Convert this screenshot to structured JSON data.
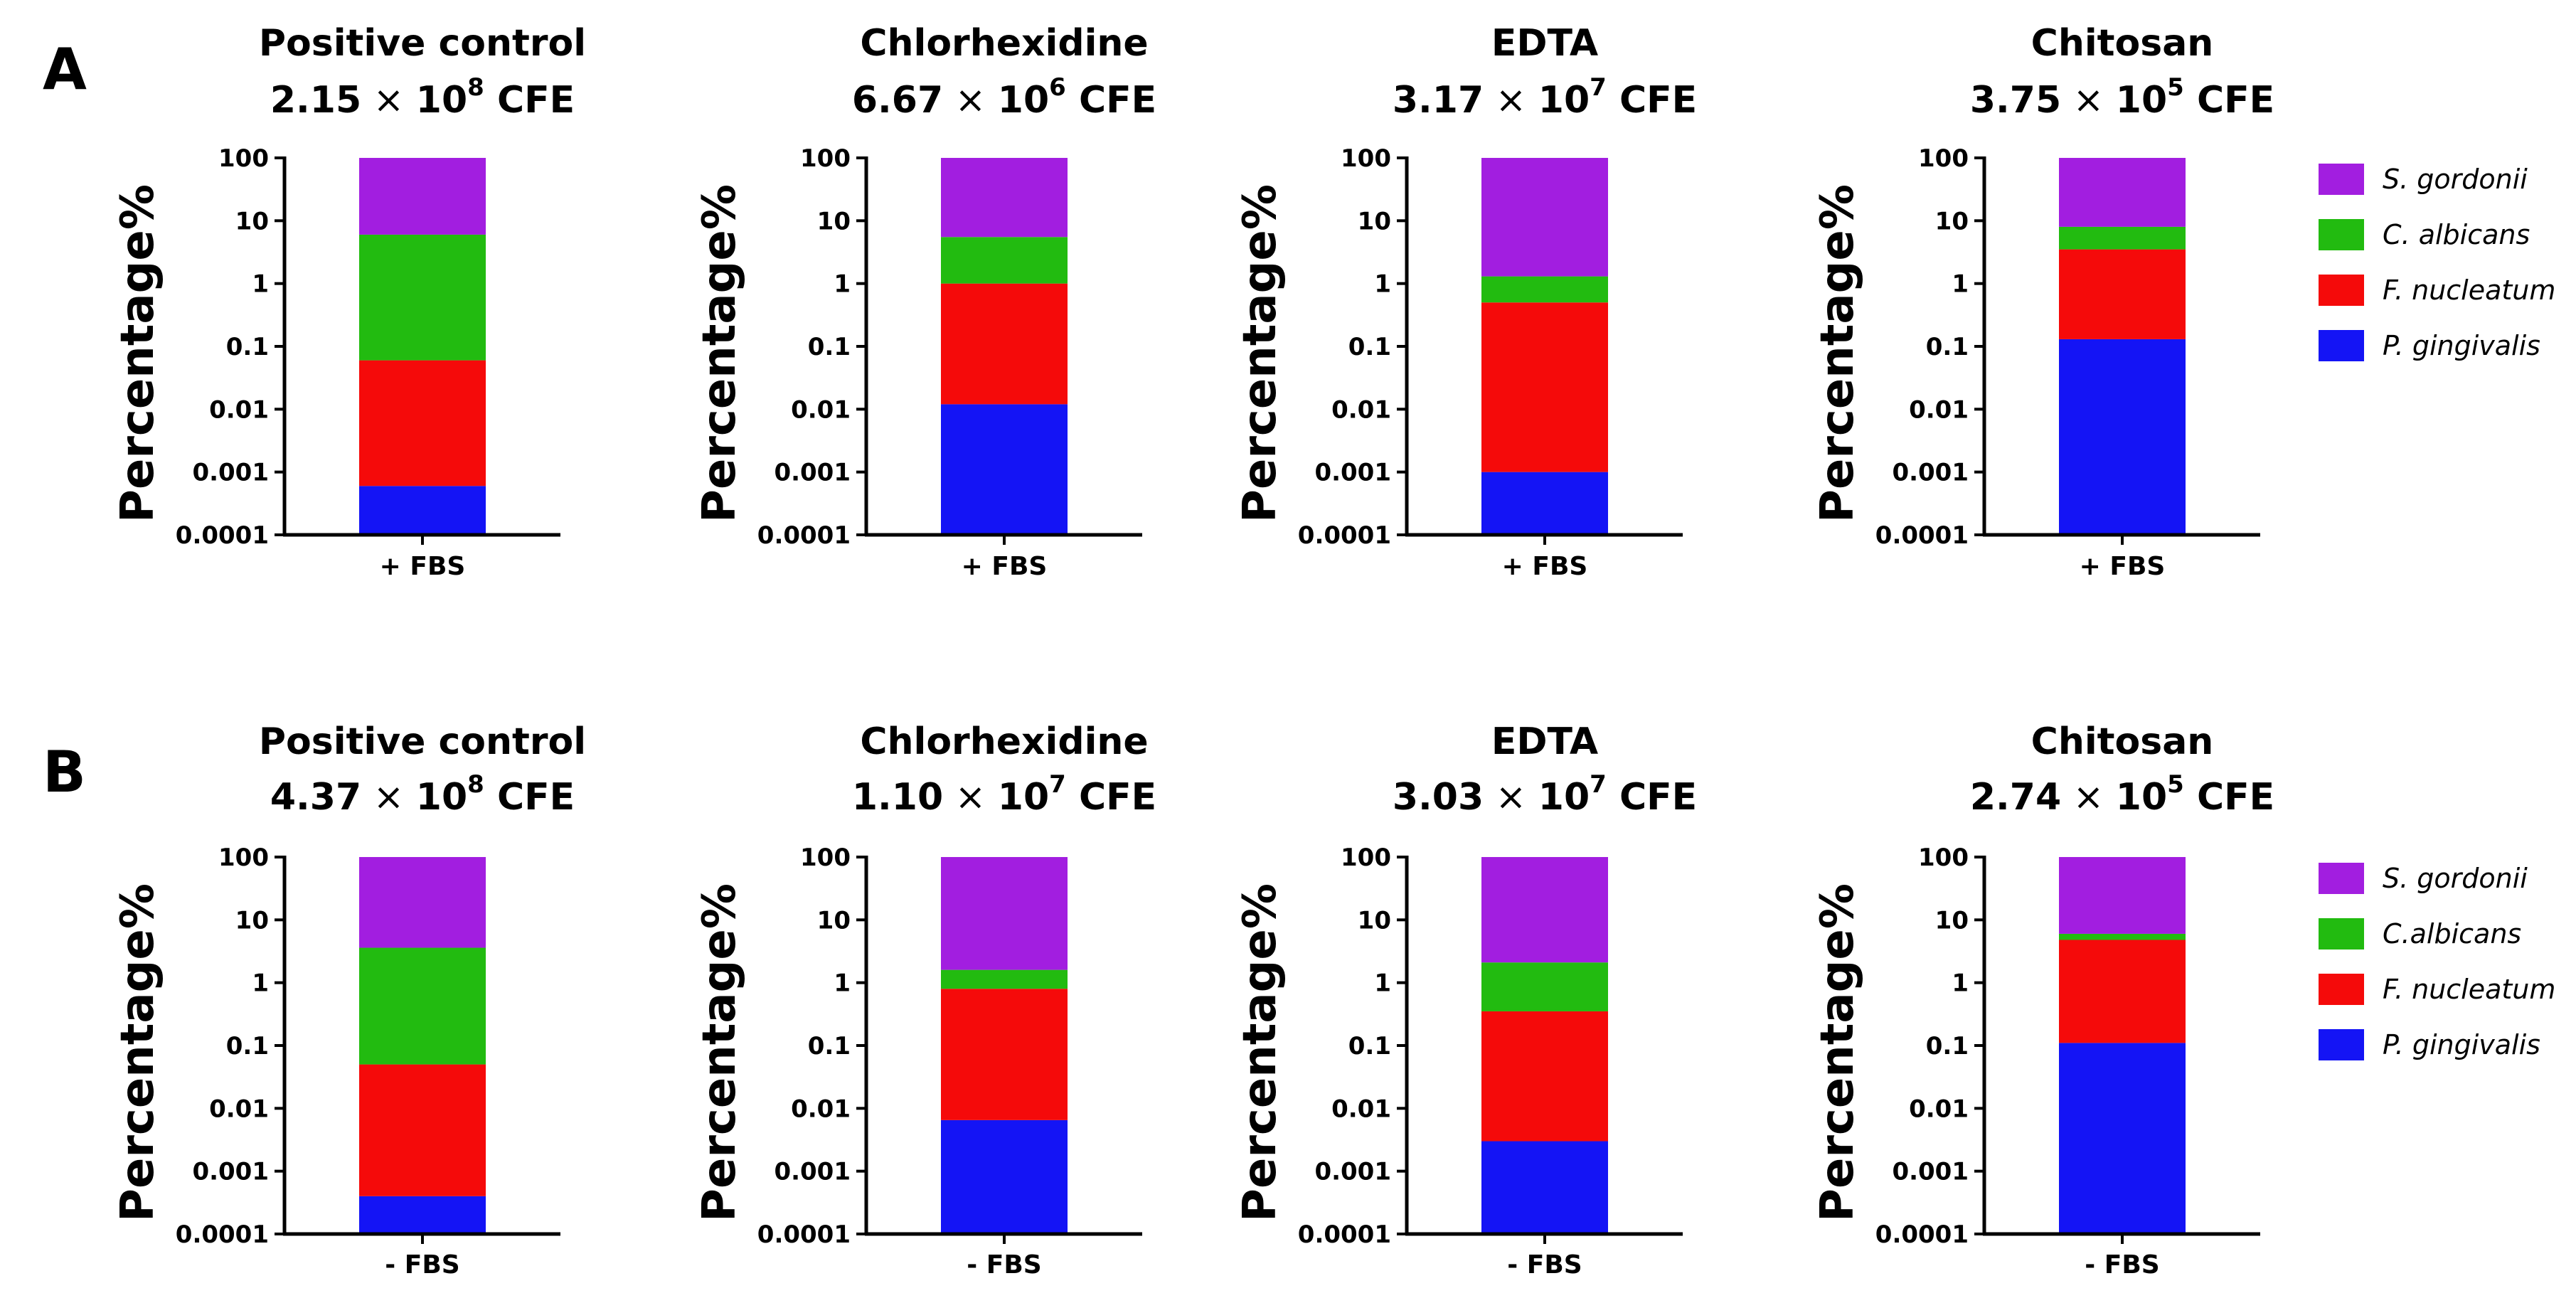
{
  "colors": {
    "S. gordonii": "#a21ee0",
    "C. albicans": "#22bb10",
    "F. nucleatum": "#f50a0a",
    "P. gingivalis": "#1414f5",
    "axis": "#000000"
  },
  "figure": {
    "y_axis_label": "Percentage%",
    "y_ticks": [
      "100",
      "10",
      "1",
      "0.1",
      "0.01",
      "0.001",
      "0.0001"
    ],
    "panels": [
      {
        "label": "A",
        "legend": [
          "S. gordonii",
          "C. albicans",
          "F. nucleatum",
          "P. gingivalis"
        ],
        "charts": [
          {
            "title": "Positive control",
            "cfe_mantissa": "2.15",
            "cfe_times": "×",
            "cfe_base": "10",
            "cfe_exp": "8",
            "cfe_unit": "CFE",
            "category": "+ FBS"
          },
          {
            "title": "Chlorhexidine",
            "cfe_mantissa": "6.67",
            "cfe_times": "×",
            "cfe_base": "10",
            "cfe_exp": "6",
            "cfe_unit": "CFE",
            "category": "+ FBS"
          },
          {
            "title": "EDTA",
            "cfe_mantissa": "3.17",
            "cfe_times": "×",
            "cfe_base": "10",
            "cfe_exp": "7",
            "cfe_unit": "CFE",
            "category": "+ FBS"
          },
          {
            "title": "Chitosan",
            "cfe_mantissa": "3.75",
            "cfe_times": "×",
            "cfe_base": "10",
            "cfe_exp": "5",
            "cfe_unit": "CFE",
            "category": "+ FBS"
          }
        ]
      },
      {
        "label": "B",
        "legend": [
          "S. gordonii",
          "C.albicans",
          "F. nucleatum",
          "P. gingivalis"
        ],
        "charts": [
          {
            "title": "Positive control",
            "cfe_mantissa": "4.37",
            "cfe_times": "×",
            "cfe_base": "10",
            "cfe_exp": "8",
            "cfe_unit": "CFE",
            "category": "- FBS"
          },
          {
            "title": "Chlorhexidine",
            "cfe_mantissa": "1.10",
            "cfe_times": "×",
            "cfe_base": "10",
            "cfe_exp": "7",
            "cfe_unit": "CFE",
            "category": "- FBS"
          },
          {
            "title": "EDTA",
            "cfe_mantissa": "3.03",
            "cfe_times": "×",
            "cfe_base": "10",
            "cfe_exp": "7",
            "cfe_unit": "CFE",
            "category": "- FBS"
          },
          {
            "title": "Chitosan",
            "cfe_mantissa": "2.74",
            "cfe_times": "×",
            "cfe_base": "10",
            "cfe_exp": "5",
            "cfe_unit": "CFE",
            "category": "- FBS"
          }
        ]
      }
    ]
  },
  "chart_data": [
    {
      "panel": "A",
      "type": "bar",
      "stacked": true,
      "y_scale": "log",
      "title": "Positive control",
      "ylabel": "Percentage%",
      "ylim": [
        0.0001,
        100
      ],
      "categories": [
        "+ FBS"
      ],
      "series": [
        {
          "name": "P. gingivalis",
          "values": [
            0.0006
          ]
        },
        {
          "name": "F. nucleatum",
          "values": [
            0.06
          ]
        },
        {
          "name": "C. albicans",
          "values": [
            6
          ]
        },
        {
          "name": "S. gordonii",
          "values": [
            100
          ]
        }
      ]
    },
    {
      "panel": "A",
      "type": "bar",
      "stacked": true,
      "y_scale": "log",
      "title": "Chlorhexidine",
      "ylabel": "Percentage%",
      "ylim": [
        0.0001,
        100
      ],
      "categories": [
        "+ FBS"
      ],
      "series": [
        {
          "name": "P. gingivalis",
          "values": [
            0.012
          ]
        },
        {
          "name": "F. nucleatum",
          "values": [
            1.0
          ]
        },
        {
          "name": "C. albicans",
          "values": [
            5.5
          ]
        },
        {
          "name": "S. gordonii",
          "values": [
            100
          ]
        }
      ]
    },
    {
      "panel": "A",
      "type": "bar",
      "stacked": true,
      "y_scale": "log",
      "title": "EDTA",
      "ylabel": "Percentage%",
      "ylim": [
        0.0001,
        100
      ],
      "categories": [
        "+ FBS"
      ],
      "series": [
        {
          "name": "P. gingivalis",
          "values": [
            0.001
          ]
        },
        {
          "name": "F. nucleatum",
          "values": [
            0.5
          ]
        },
        {
          "name": "C. albicans",
          "values": [
            1.3
          ]
        },
        {
          "name": "S. gordonii",
          "values": [
            100
          ]
        }
      ]
    },
    {
      "panel": "A",
      "type": "bar",
      "stacked": true,
      "y_scale": "log",
      "title": "Chitosan",
      "ylabel": "Percentage%",
      "ylim": [
        0.0001,
        100
      ],
      "categories": [
        "+ FBS"
      ],
      "series": [
        {
          "name": "P. gingivalis",
          "values": [
            0.13
          ]
        },
        {
          "name": "F. nucleatum",
          "values": [
            3.5
          ]
        },
        {
          "name": "C. albicans",
          "values": [
            8
          ]
        },
        {
          "name": "S. gordonii",
          "values": [
            100
          ]
        }
      ]
    },
    {
      "panel": "B",
      "type": "bar",
      "stacked": true,
      "y_scale": "log",
      "title": "Positive control",
      "ylabel": "Percentage%",
      "ylim": [
        0.0001,
        100
      ],
      "categories": [
        "- FBS"
      ],
      "series": [
        {
          "name": "P. gingivalis",
          "values": [
            0.0004
          ]
        },
        {
          "name": "F. nucleatum",
          "values": [
            0.05
          ]
        },
        {
          "name": "C. albicans",
          "values": [
            3.6
          ]
        },
        {
          "name": "S. gordonii",
          "values": [
            100
          ]
        }
      ]
    },
    {
      "panel": "B",
      "type": "bar",
      "stacked": true,
      "y_scale": "log",
      "title": "Chlorhexidine",
      "ylabel": "Percentage%",
      "ylim": [
        0.0001,
        100
      ],
      "categories": [
        "- FBS"
      ],
      "series": [
        {
          "name": "P. gingivalis",
          "values": [
            0.0065
          ]
        },
        {
          "name": "F. nucleatum",
          "values": [
            0.8
          ]
        },
        {
          "name": "C. albicans",
          "values": [
            1.6
          ]
        },
        {
          "name": "S. gordonii",
          "values": [
            100
          ]
        }
      ]
    },
    {
      "panel": "B",
      "type": "bar",
      "stacked": true,
      "y_scale": "log",
      "title": "EDTA",
      "ylabel": "Percentage%",
      "ylim": [
        0.0001,
        100
      ],
      "categories": [
        "- FBS"
      ],
      "series": [
        {
          "name": "P. gingivalis",
          "values": [
            0.003
          ]
        },
        {
          "name": "F. nucleatum",
          "values": [
            0.35
          ]
        },
        {
          "name": "C. albicans",
          "values": [
            2.1
          ]
        },
        {
          "name": "S. gordonii",
          "values": [
            100
          ]
        }
      ]
    },
    {
      "panel": "B",
      "type": "bar",
      "stacked": true,
      "y_scale": "log",
      "title": "Chitosan",
      "ylabel": "Percentage%",
      "ylim": [
        0.0001,
        100
      ],
      "categories": [
        "- FBS"
      ],
      "series": [
        {
          "name": "P. gingivalis",
          "values": [
            0.11
          ]
        },
        {
          "name": "F. nucleatum",
          "values": [
            4.8
          ]
        },
        {
          "name": "C. albicans",
          "values": [
            6
          ]
        },
        {
          "name": "S. gordonii",
          "values": [
            100
          ]
        }
      ]
    }
  ]
}
